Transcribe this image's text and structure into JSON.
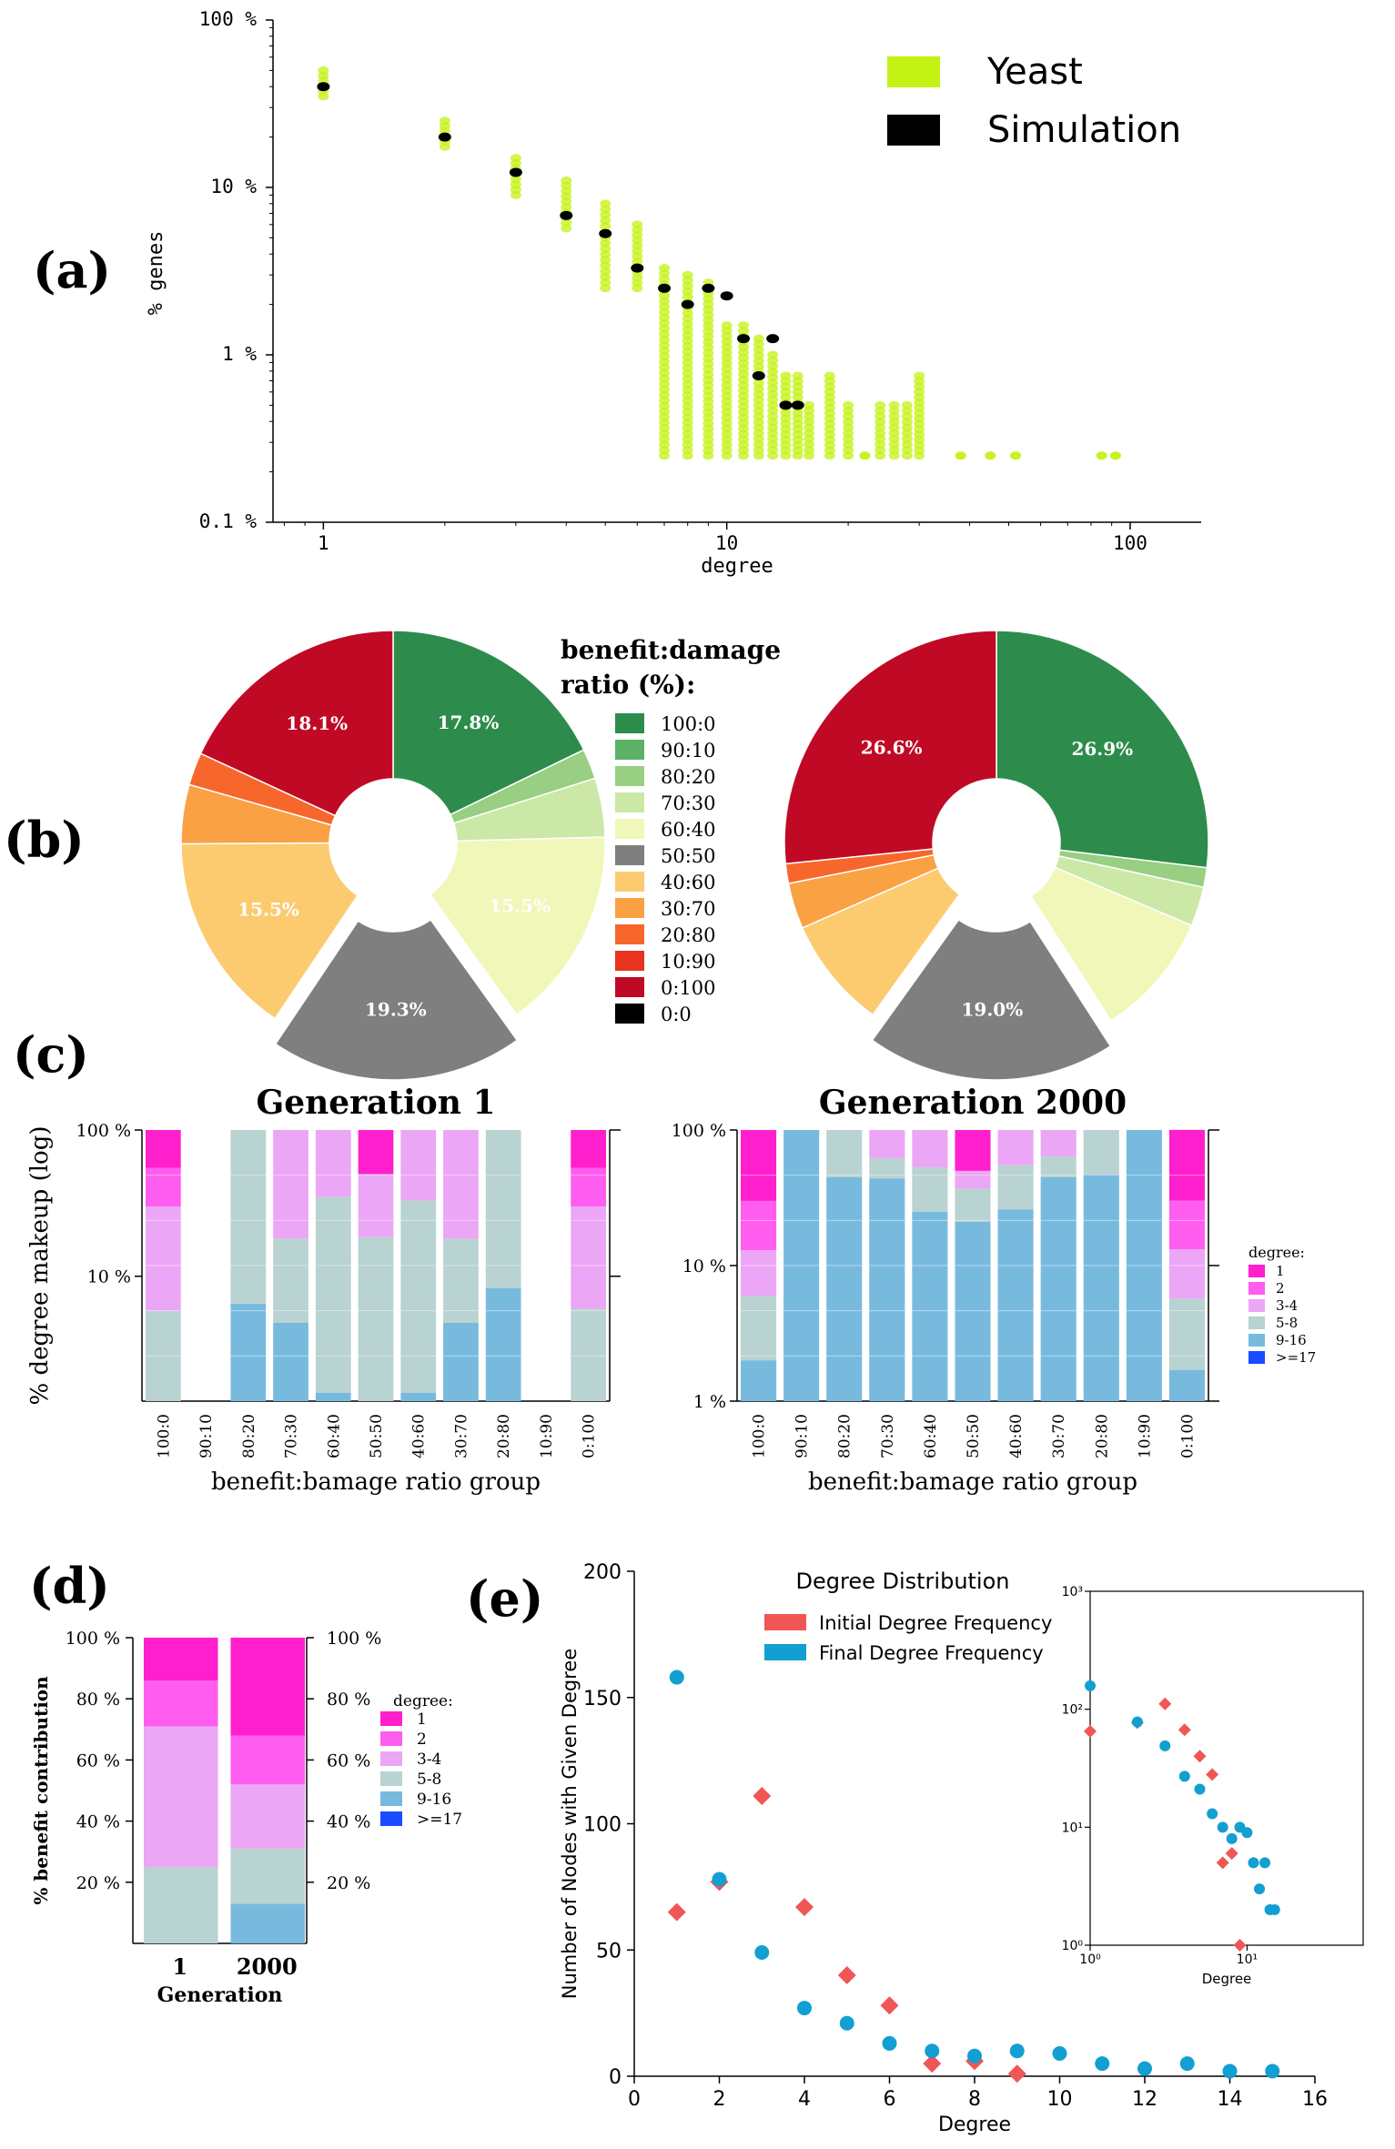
{
  "panel_labels": {
    "a": "(a)",
    "b": "(b)",
    "c": "(c)",
    "d": "(d)",
    "e": "(e)"
  },
  "colors": {
    "yeast": "#c4f214",
    "simulation": "#000000",
    "degree_1": "#ff1fcc",
    "degree_2": "#ff5cf0",
    "degree_3_4": "#eba6f5",
    "degree_5_8": "#b9d2d2",
    "degree_9_16": "#78bade",
    "degree_17": "#1a4dff",
    "initial": "#f05656",
    "final": "#129fd1"
  },
  "chart_data": [
    {
      "id": "a",
      "type": "scatter",
      "xlabel": "degree",
      "ylabel": "% genes",
      "xscale": "log",
      "yscale": "log",
      "xlim": [
        0.75,
        150
      ],
      "ylim": [
        0.1,
        100
      ],
      "xticks": [
        1,
        10,
        100
      ],
      "xtick_labels": [
        "1",
        "10",
        "100"
      ],
      "yticks": [
        0.1,
        1,
        10,
        100
      ],
      "ytick_labels": [
        "0.1 %",
        "1 %",
        "10 %",
        "100 %"
      ],
      "legend": [
        "Yeast",
        "Simulation"
      ],
      "legend_position": "top-right",
      "series": [
        {
          "name": "Simulation",
          "x": [
            1,
            2,
            3,
            4,
            5,
            6,
            7,
            8,
            9,
            10,
            11,
            12,
            13,
            14,
            15
          ],
          "y": [
            40,
            20,
            12.3,
            6.8,
            5.3,
            3.3,
            2.5,
            2.0,
            2.5,
            2.25,
            1.25,
            0.75,
            1.25,
            0.5,
            0.5
          ]
        },
        {
          "name": "Yeast",
          "x": [
            1,
            2,
            3,
            4,
            5,
            6,
            7,
            8,
            9,
            10,
            11,
            12,
            13,
            14,
            15,
            16,
            18,
            20,
            22,
            24,
            26,
            28,
            30,
            38,
            45,
            52,
            85,
            92
          ],
          "y_min": [
            35,
            17.5,
            9,
            5.7,
            2.5,
            2.5,
            0.25,
            0.25,
            0.25,
            0.25,
            0.25,
            0.25,
            0.25,
            0.25,
            0.25,
            0.25,
            0.25,
            0.25,
            0.25,
            0.25,
            0.25,
            0.25,
            0.25,
            0.25,
            0.25,
            0.25,
            0.25,
            0.25
          ],
          "y_max": [
            50,
            25,
            15,
            11,
            8,
            6,
            3.3,
            3,
            2.7,
            1.5,
            1.5,
            1.25,
            1,
            0.75,
            0.75,
            0.5,
            0.75,
            0.5,
            0.25,
            0.5,
            0.5,
            0.5,
            0.75,
            0.25,
            0.25,
            0.25,
            0.25,
            0.25
          ]
        }
      ]
    },
    {
      "id": "b",
      "type": "pie",
      "title": "benefit:damage ratio (%):",
      "categories": [
        "100:0",
        "90:10",
        "80:20",
        "70:30",
        "60:40",
        "50:50",
        "40:60",
        "30:70",
        "20:80",
        "10:90",
        "0:100",
        "0:0"
      ],
      "slice_colors": [
        "#2d8c4b",
        "#5cb166",
        "#98cf82",
        "#cbe8a6",
        "#f0f7b8",
        "#7f7f7f",
        "#fccb70",
        "#faa144",
        "#f7672c",
        "#e8341f",
        "#c00a25",
        "#000000"
      ],
      "pies": [
        {
          "name": "left",
          "values": [
            17.8,
            0,
            2.3,
            4.5,
            15.5,
            19.3,
            15.5,
            4.5,
            2.5,
            0,
            18.1,
            0
          ],
          "exploded": "50:50",
          "labels": {
            "100:0": "17.8%",
            "60:40": "15.5%",
            "50:50": "19.3%",
            "40:60": "15.5%",
            "0:100": "18.1%"
          }
        },
        {
          "name": "right",
          "values": [
            26.9,
            0,
            1.5,
            3.0,
            9.5,
            19.0,
            8.5,
            3.5,
            1.5,
            0,
            26.6,
            0
          ],
          "exploded": "50:50",
          "labels": {
            "100:0": "26.9%",
            "50:50": "19.0%",
            "0:100": "26.6%"
          }
        }
      ]
    },
    {
      "id": "c1",
      "type": "bar",
      "title": "Generation 1",
      "ylabel": "% degree makeup (log)",
      "xlabel": "benefit:bamage ratio group",
      "yscale": "log",
      "ylim": [
        1.4,
        100
      ],
      "yticks": [
        10,
        100
      ],
      "ytick_labels": [
        "10 %",
        "100 %"
      ],
      "categories": [
        "100:0",
        "90:10",
        "80:20",
        "70:30",
        "60:40",
        "50:50",
        "40:60",
        "30:70",
        "20:80",
        "10:90",
        "0:100"
      ],
      "series": [
        {
          "name": "9-16",
          "values": [
            0,
            0,
            6.5,
            4.8,
            1.6,
            0,
            1.6,
            4.8,
            8.3,
            0,
            0
          ]
        },
        {
          "name": "5-8",
          "values": [
            5.8,
            0,
            93.5,
            13.3,
            33.4,
            18.5,
            31.4,
            13.3,
            91.7,
            0,
            6.0
          ]
        },
        {
          "name": "3-4",
          "values": [
            24.2,
            0,
            0,
            81.9,
            65.0,
            31.5,
            67.0,
            81.9,
            0,
            0,
            24.0
          ]
        },
        {
          "name": "2",
          "values": [
            25.0,
            0,
            0,
            0,
            0,
            0,
            0,
            0,
            0,
            0,
            25.0
          ]
        },
        {
          "name": "1",
          "values": [
            45.0,
            0,
            0,
            0,
            0,
            50.0,
            0,
            0,
            0,
            0,
            45.0
          ]
        }
      ]
    },
    {
      "id": "c2",
      "type": "bar",
      "title": "Generation 2000",
      "xlabel": "benefit:bamage ratio group",
      "yscale": "log",
      "ylim": [
        1,
        100
      ],
      "yticks": [
        1,
        10,
        100
      ],
      "ytick_labels": [
        "1 %",
        "10 %",
        "100 %"
      ],
      "categories": [
        "100:0",
        "90:10",
        "80:20",
        "70:30",
        "60:40",
        "50:50",
        "40:60",
        "30:70",
        "20:80",
        "10:90",
        "0:100"
      ],
      "legend_title": "degree:",
      "legend": [
        "1",
        "2",
        "3-4",
        "5-8",
        "9-16",
        ">=17"
      ],
      "series": [
        {
          "name": "9-16",
          "values": [
            2.0,
            100,
            45,
            44,
            25,
            21,
            26,
            45,
            47,
            100,
            1.7
          ]
        },
        {
          "name": "5-8",
          "values": [
            4.0,
            0,
            55,
            18,
            28,
            16,
            29,
            19,
            53,
            0,
            4.0
          ]
        },
        {
          "name": "3-4",
          "values": [
            7.0,
            0,
            0,
            38,
            47,
            13,
            45,
            36,
            0,
            0,
            7.5
          ]
        },
        {
          "name": "2",
          "values": [
            17.0,
            0,
            0,
            0,
            0,
            0,
            0,
            0,
            0,
            0,
            17.0
          ]
        },
        {
          "name": "1",
          "values": [
            70.0,
            0,
            0,
            0,
            0,
            50,
            0,
            0,
            0,
            0,
            70.0
          ]
        }
      ]
    },
    {
      "id": "d",
      "type": "bar",
      "ylabel": "% benefit contribution",
      "xlabel": "Generation",
      "ylim": [
        0,
        100
      ],
      "yticks": [
        20,
        40,
        60,
        80,
        100
      ],
      "ytick_labels": [
        "20 %",
        "40 %",
        "60 %",
        "80 %",
        "100 %"
      ],
      "categories": [
        "1",
        "2000"
      ],
      "legend_title": "degree:",
      "legend": [
        "1",
        "2",
        "3-4",
        "5-8",
        "9-16",
        ">=17"
      ],
      "series": [
        {
          "name": "9-16",
          "values": [
            0,
            13
          ]
        },
        {
          "name": "5-8",
          "values": [
            25,
            18
          ]
        },
        {
          "name": "3-4",
          "values": [
            46,
            21
          ]
        },
        {
          "name": "2",
          "values": [
            15,
            16
          ]
        },
        {
          "name": "1",
          "values": [
            14,
            32
          ]
        }
      ]
    },
    {
      "id": "e",
      "type": "scatter",
      "title": "Degree Distribution",
      "xlabel": "Degree",
      "ylabel": "Number of Nodes with Given Degree",
      "xlim": [
        0,
        16
      ],
      "ylim": [
        0,
        200
      ],
      "xticks": [
        0,
        2,
        4,
        6,
        8,
        10,
        12,
        14,
        16
      ],
      "yticks": [
        0,
        50,
        100,
        150,
        200
      ],
      "legend": [
        "Initial Degree Frequency",
        "Final Degree Frequency"
      ],
      "legend_position": "top-center",
      "series": [
        {
          "name": "Initial Degree Frequency",
          "marker": "diamond",
          "x": [
            1,
            2,
            3,
            4,
            5,
            6,
            7,
            8,
            9
          ],
          "y": [
            65,
            77,
            111,
            67,
            40,
            28,
            5,
            6,
            1
          ]
        },
        {
          "name": "Final Degree Frequency",
          "marker": "circle",
          "x": [
            1,
            2,
            3,
            4,
            5,
            6,
            7,
            8,
            9,
            10,
            11,
            12,
            13,
            14,
            15
          ],
          "y": [
            158,
            78,
            49,
            27,
            21,
            13,
            10,
            8,
            10,
            9,
            5,
            3,
            5,
            2,
            2
          ]
        }
      ],
      "inset": {
        "xlabel": "Degree",
        "xscale": "log",
        "yscale": "log",
        "xlim": [
          1,
          55
        ],
        "ylim": [
          1,
          1000
        ],
        "xtick_labels": [
          "10⁰",
          "10¹"
        ],
        "ytick_labels": [
          "10⁰",
          "10¹",
          "10²",
          "10³"
        ]
      }
    }
  ]
}
